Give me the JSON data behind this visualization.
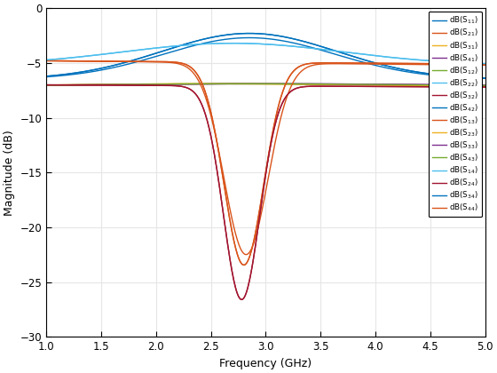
{
  "freq_start": 1.0,
  "freq_stop": 5.0,
  "freq_points": 500,
  "xlabel": "Frequency (GHz)",
  "ylabel": "Magnitude (dB)",
  "xlim": [
    1,
    5
  ],
  "ylim": [
    -30,
    0
  ],
  "yticks": [
    0,
    -5,
    -10,
    -15,
    -20,
    -25,
    -30
  ],
  "xticks": [
    1,
    1.5,
    2,
    2.5,
    3,
    3.5,
    4,
    4.5,
    5
  ],
  "legend_labels": [
    "dB(S_{11})",
    "dB(S_{21})",
    "dB(S_{31})",
    "dB(S_{41})",
    "dB(S_{12})",
    "dB(S_{22})",
    "dB(S_{32})",
    "dB(S_{42})",
    "dB(S_{13})",
    "dB(S_{23})",
    "dB(S_{33})",
    "dB(S_{43})",
    "dB(S_{14})",
    "dB(S_{24})",
    "dB(S_{34})",
    "dB(S_{44})"
  ],
  "line_colors": [
    "#0072BD",
    "#D95319",
    "#EDB120",
    "#7E2F8E",
    "#77AC30",
    "#4DBEEE",
    "#A2142F",
    "#0072BD",
    "#D95319",
    "#EDB120",
    "#7E2F8E",
    "#77AC30",
    "#4DBEEE",
    "#A2142F",
    "#0072BD",
    "#D95319"
  ],
  "background_color": "#FFFFFF",
  "grid_color": "#E6E6E6"
}
